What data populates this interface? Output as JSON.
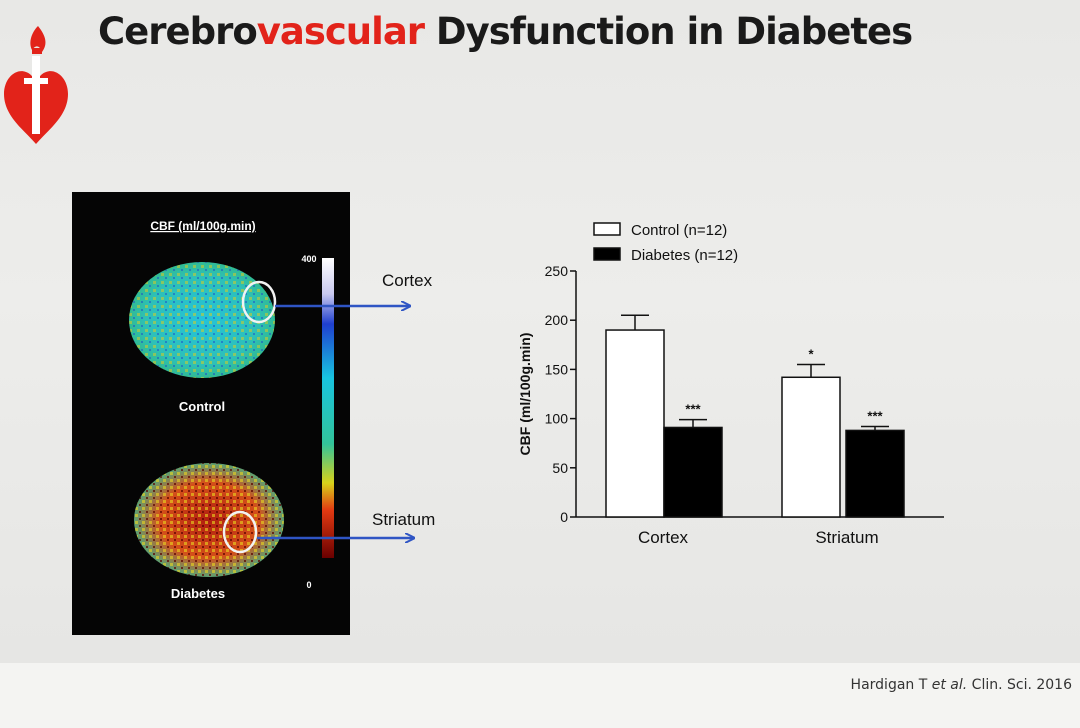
{
  "slide": {
    "title_part1": "Cerebro",
    "title_accent": "vascular",
    "title_part2": " Dysfunction in Diabetes",
    "citation_author": "Hardigan T ",
    "citation_etal": "et al.",
    "citation_journal": " Clin. Sci. 2016",
    "accent_color": "#e2231a"
  },
  "mri_panel": {
    "heading": "CBF (ml/100g.min)",
    "scale_max": "400",
    "scale_min": "0",
    "control_label": "Control",
    "diabetes_label": "Diabetes",
    "callout_cortex": "Cortex",
    "callout_striatum": "Striatum",
    "arrow_color": "#2f55c4",
    "colorbar_colors": [
      "#ffffff",
      "#1f3fcf",
      "#18c4e0",
      "#33c49a",
      "#d8d21a",
      "#e23a12",
      "#6a0000"
    ]
  },
  "chart_data": {
    "type": "bar",
    "categories": [
      "Cortex",
      "Striatum"
    ],
    "series": [
      {
        "name": "Control (n=12)",
        "values": [
          190,
          142
        ],
        "errors": [
          15,
          13
        ],
        "color": "#ffffff",
        "significance": [
          "",
          "*"
        ]
      },
      {
        "name": "Diabetes (n=12)",
        "values": [
          91,
          88
        ],
        "errors": [
          8,
          4
        ],
        "color": "#000000",
        "significance": [
          "***",
          "***"
        ]
      }
    ],
    "ylabel": "CBF (ml/100g.min)",
    "xlabel": "",
    "ylim": [
      0,
      250
    ],
    "yticks": [
      0,
      50,
      100,
      150,
      200,
      250
    ],
    "legend_position": "top",
    "grid": false
  }
}
